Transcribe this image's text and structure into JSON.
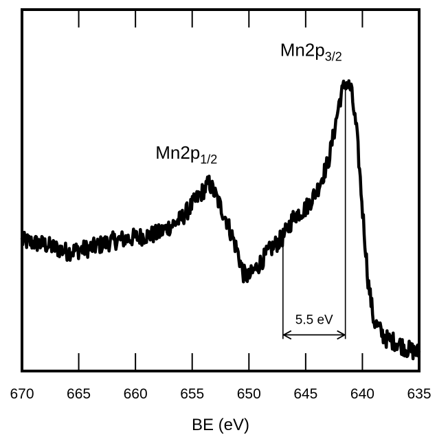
{
  "chart_data": {
    "type": "line",
    "title": "",
    "xlabel": "BE (eV)",
    "ylabel": "",
    "x_reversed": true,
    "xlim": [
      670,
      635
    ],
    "ylim": [
      0,
      1
    ],
    "y_ticks_shown": false,
    "grid": false,
    "x_ticks": [
      670,
      665,
      660,
      655,
      650,
      645,
      640,
      635
    ],
    "x_tick_labels": [
      "670",
      "665",
      "660",
      "655",
      "650",
      "645",
      "640",
      "635"
    ],
    "series": [
      {
        "x": [
          670,
          668,
          666,
          664,
          662,
          660,
          658,
          656,
          655,
          654,
          653.5,
          653,
          652,
          651,
          650.5,
          650,
          649,
          648,
          647,
          646,
          645,
          644,
          643.5,
          643,
          642.5,
          642,
          641.5,
          641,
          640.5,
          640,
          639.5,
          639,
          638,
          637,
          636,
          635
        ],
        "values": [
          0.36,
          0.35,
          0.33,
          0.34,
          0.36,
          0.37,
          0.38,
          0.42,
          0.46,
          0.5,
          0.52,
          0.49,
          0.42,
          0.33,
          0.27,
          0.26,
          0.3,
          0.34,
          0.37,
          0.43,
          0.45,
          0.5,
          0.54,
          0.58,
          0.66,
          0.75,
          0.8,
          0.78,
          0.66,
          0.45,
          0.25,
          0.14,
          0.09,
          0.08,
          0.06,
          0.05
        ]
      }
    ],
    "annotations": [
      {
        "text": "Mn2p",
        "subscript": "1/2",
        "x": 654,
        "y": 0.58
      },
      {
        "text": "Mn2p",
        "subscript": "3/2",
        "x": 641.8,
        "y": 0.86
      },
      {
        "text": "5.5 eV",
        "type": "double-arrow",
        "x1": 647,
        "x2": 641.5,
        "y": 0.1
      }
    ]
  }
}
